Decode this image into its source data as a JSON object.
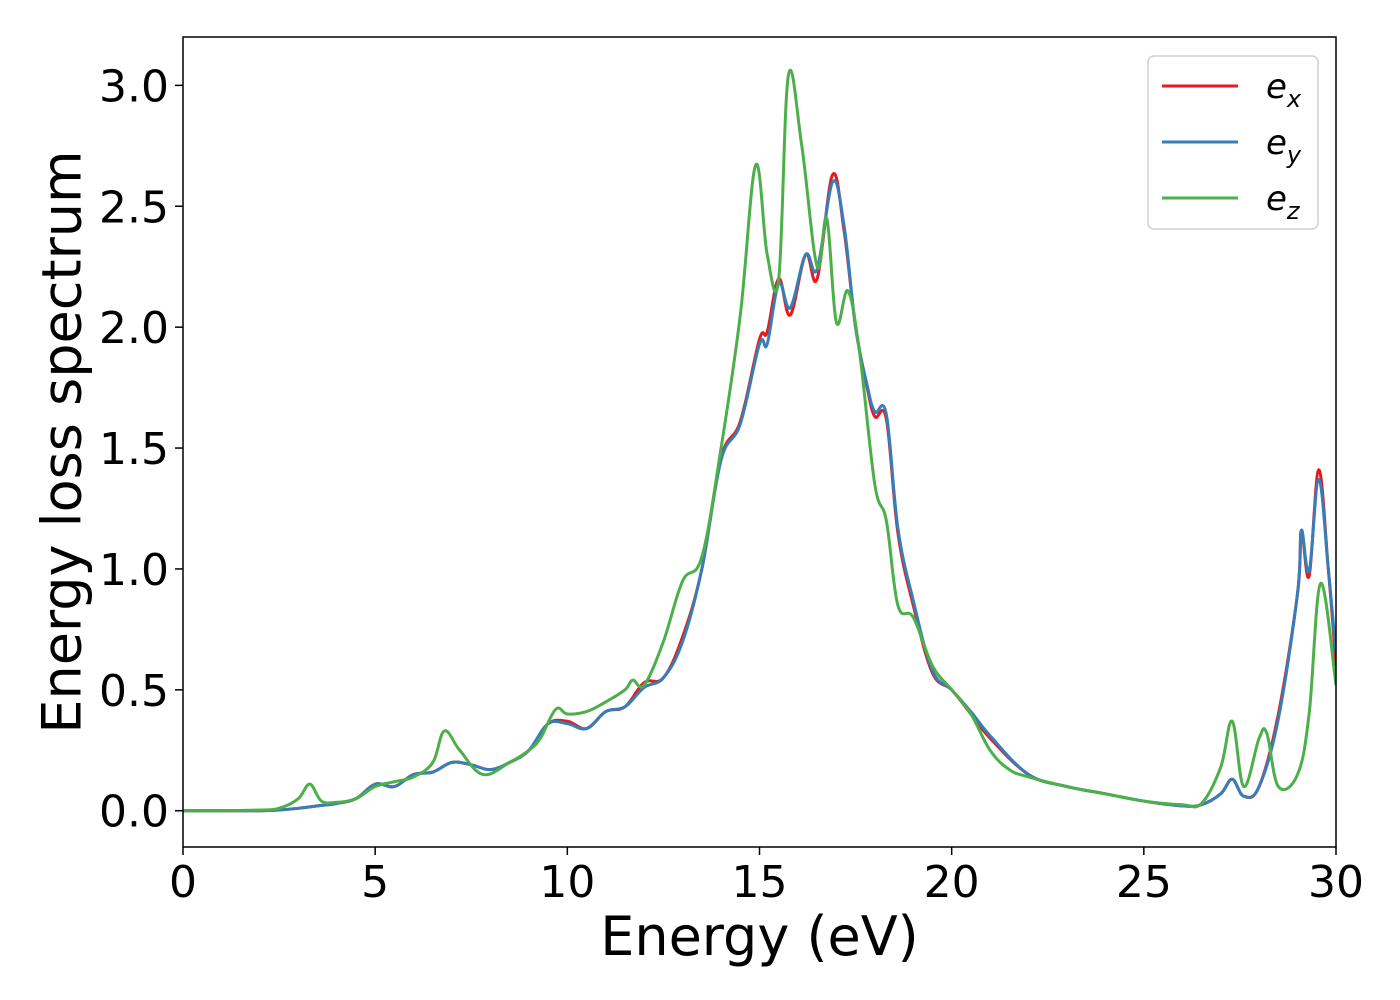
{
  "chart_data": {
    "type": "line",
    "xlabel": "Energy (eV)",
    "ylabel": "Energy loss spectrum",
    "xlim": [
      0,
      30
    ],
    "ylim": [
      -0.15,
      3.2
    ],
    "xticks": [
      0,
      5,
      10,
      15,
      20,
      25,
      30
    ],
    "xtick_labels": [
      "0",
      "5",
      "10",
      "15",
      "20",
      "25",
      "30"
    ],
    "yticks": [
      0.0,
      0.5,
      1.0,
      1.5,
      2.0,
      2.5,
      3.0
    ],
    "ytick_labels": [
      "0.0",
      "0.5",
      "1.0",
      "1.5",
      "2.0",
      "2.5",
      "3.0"
    ],
    "grid": false,
    "legend_position": "top-right",
    "series": [
      {
        "name": "e",
        "sub": "x",
        "color": "#e41a1c",
        "x": [
          0,
          1,
          2,
          2.5,
          3,
          3.5,
          4,
          4.5,
          5,
          5.5,
          6,
          6.5,
          7,
          7.5,
          8,
          8.5,
          9,
          9.5,
          10,
          10.5,
          11,
          11.5,
          12,
          12.5,
          13,
          13.5,
          14,
          14.5,
          15,
          15.2,
          15.5,
          15.8,
          16.2,
          16.5,
          16.9,
          17.2,
          17.5,
          17.8,
          18,
          18.3,
          18.6,
          19,
          19.5,
          20,
          20.5,
          21,
          22,
          23,
          24,
          25,
          26,
          26.5,
          27,
          27.3,
          27.6,
          28,
          28.5,
          29,
          29.1,
          29.3,
          29.55,
          29.8,
          30
        ],
        "y": [
          0,
          0,
          0,
          0.003,
          0.01,
          0.02,
          0.03,
          0.05,
          0.11,
          0.1,
          0.15,
          0.16,
          0.2,
          0.19,
          0.17,
          0.2,
          0.25,
          0.36,
          0.37,
          0.34,
          0.41,
          0.43,
          0.53,
          0.55,
          0.72,
          1.0,
          1.46,
          1.61,
          1.95,
          1.98,
          2.2,
          2.05,
          2.3,
          2.2,
          2.63,
          2.4,
          2.0,
          1.75,
          1.63,
          1.62,
          1.15,
          0.85,
          0.57,
          0.5,
          0.4,
          0.3,
          0.15,
          0.1,
          0.07,
          0.04,
          0.02,
          0.025,
          0.07,
          0.13,
          0.06,
          0.1,
          0.4,
          0.9,
          1.16,
          0.97,
          1.41,
          1.0,
          0.6
        ]
      },
      {
        "name": "e",
        "sub": "y",
        "color": "#377eb8",
        "x": [
          0,
          1,
          2,
          2.5,
          3,
          3.5,
          4,
          4.5,
          5,
          5.5,
          6,
          6.5,
          7,
          7.5,
          8,
          8.5,
          9,
          9.5,
          10,
          10.5,
          11,
          11.5,
          12,
          12.5,
          13,
          13.5,
          14,
          14.5,
          15,
          15.2,
          15.5,
          15.8,
          16.2,
          16.5,
          16.9,
          17.2,
          17.5,
          17.8,
          18,
          18.3,
          18.6,
          19,
          19.5,
          20,
          20.5,
          21,
          22,
          23,
          24,
          25,
          26,
          26.5,
          27,
          27.3,
          27.6,
          28,
          28.5,
          29,
          29.1,
          29.3,
          29.55,
          29.8,
          30
        ],
        "y": [
          0,
          0,
          0,
          0.003,
          0.01,
          0.02,
          0.03,
          0.05,
          0.11,
          0.1,
          0.15,
          0.16,
          0.2,
          0.19,
          0.17,
          0.2,
          0.25,
          0.36,
          0.36,
          0.34,
          0.41,
          0.43,
          0.51,
          0.55,
          0.7,
          1.0,
          1.45,
          1.6,
          1.93,
          1.93,
          2.18,
          2.08,
          2.3,
          2.24,
          2.6,
          2.42,
          2.0,
          1.76,
          1.65,
          1.64,
          1.17,
          0.87,
          0.58,
          0.5,
          0.41,
          0.31,
          0.15,
          0.1,
          0.07,
          0.04,
          0.02,
          0.025,
          0.07,
          0.13,
          0.06,
          0.1,
          0.38,
          0.9,
          1.16,
          0.99,
          1.37,
          1.0,
          0.65
        ]
      },
      {
        "name": "e",
        "sub": "z",
        "color": "#4daf4a",
        "x": [
          0,
          1,
          2,
          2.5,
          3,
          3.3,
          3.6,
          4,
          4.5,
          5,
          5.5,
          6,
          6.5,
          6.8,
          7.2,
          7.8,
          8.5,
          9,
          9.3,
          9.7,
          10,
          10.5,
          11,
          11.5,
          11.7,
          12,
          12.5,
          13,
          13.5,
          14,
          14.5,
          14.9,
          15.2,
          15.5,
          15.75,
          16.1,
          16.5,
          16.75,
          17,
          17.3,
          17.6,
          18,
          18.3,
          18.6,
          19,
          19.5,
          20,
          20.5,
          21,
          21.5,
          22,
          23,
          24,
          25,
          26,
          26.5,
          27,
          27.3,
          27.6,
          28,
          28.2,
          28.5,
          29,
          29.3,
          29.6,
          30
        ],
        "y": [
          0,
          0,
          0.003,
          0.01,
          0.05,
          0.11,
          0.04,
          0.035,
          0.05,
          0.1,
          0.12,
          0.14,
          0.2,
          0.33,
          0.25,
          0.15,
          0.2,
          0.25,
          0.3,
          0.42,
          0.4,
          0.41,
          0.45,
          0.5,
          0.54,
          0.52,
          0.7,
          0.95,
          1.05,
          1.5,
          2.05,
          2.67,
          2.3,
          2.2,
          3.04,
          2.75,
          2.25,
          2.45,
          2.02,
          2.15,
          1.9,
          1.35,
          1.2,
          0.85,
          0.8,
          0.6,
          0.5,
          0.4,
          0.25,
          0.17,
          0.14,
          0.1,
          0.07,
          0.04,
          0.025,
          0.03,
          0.18,
          0.37,
          0.1,
          0.3,
          0.32,
          0.1,
          0.15,
          0.4,
          0.94,
          0.52
        ]
      }
    ]
  }
}
